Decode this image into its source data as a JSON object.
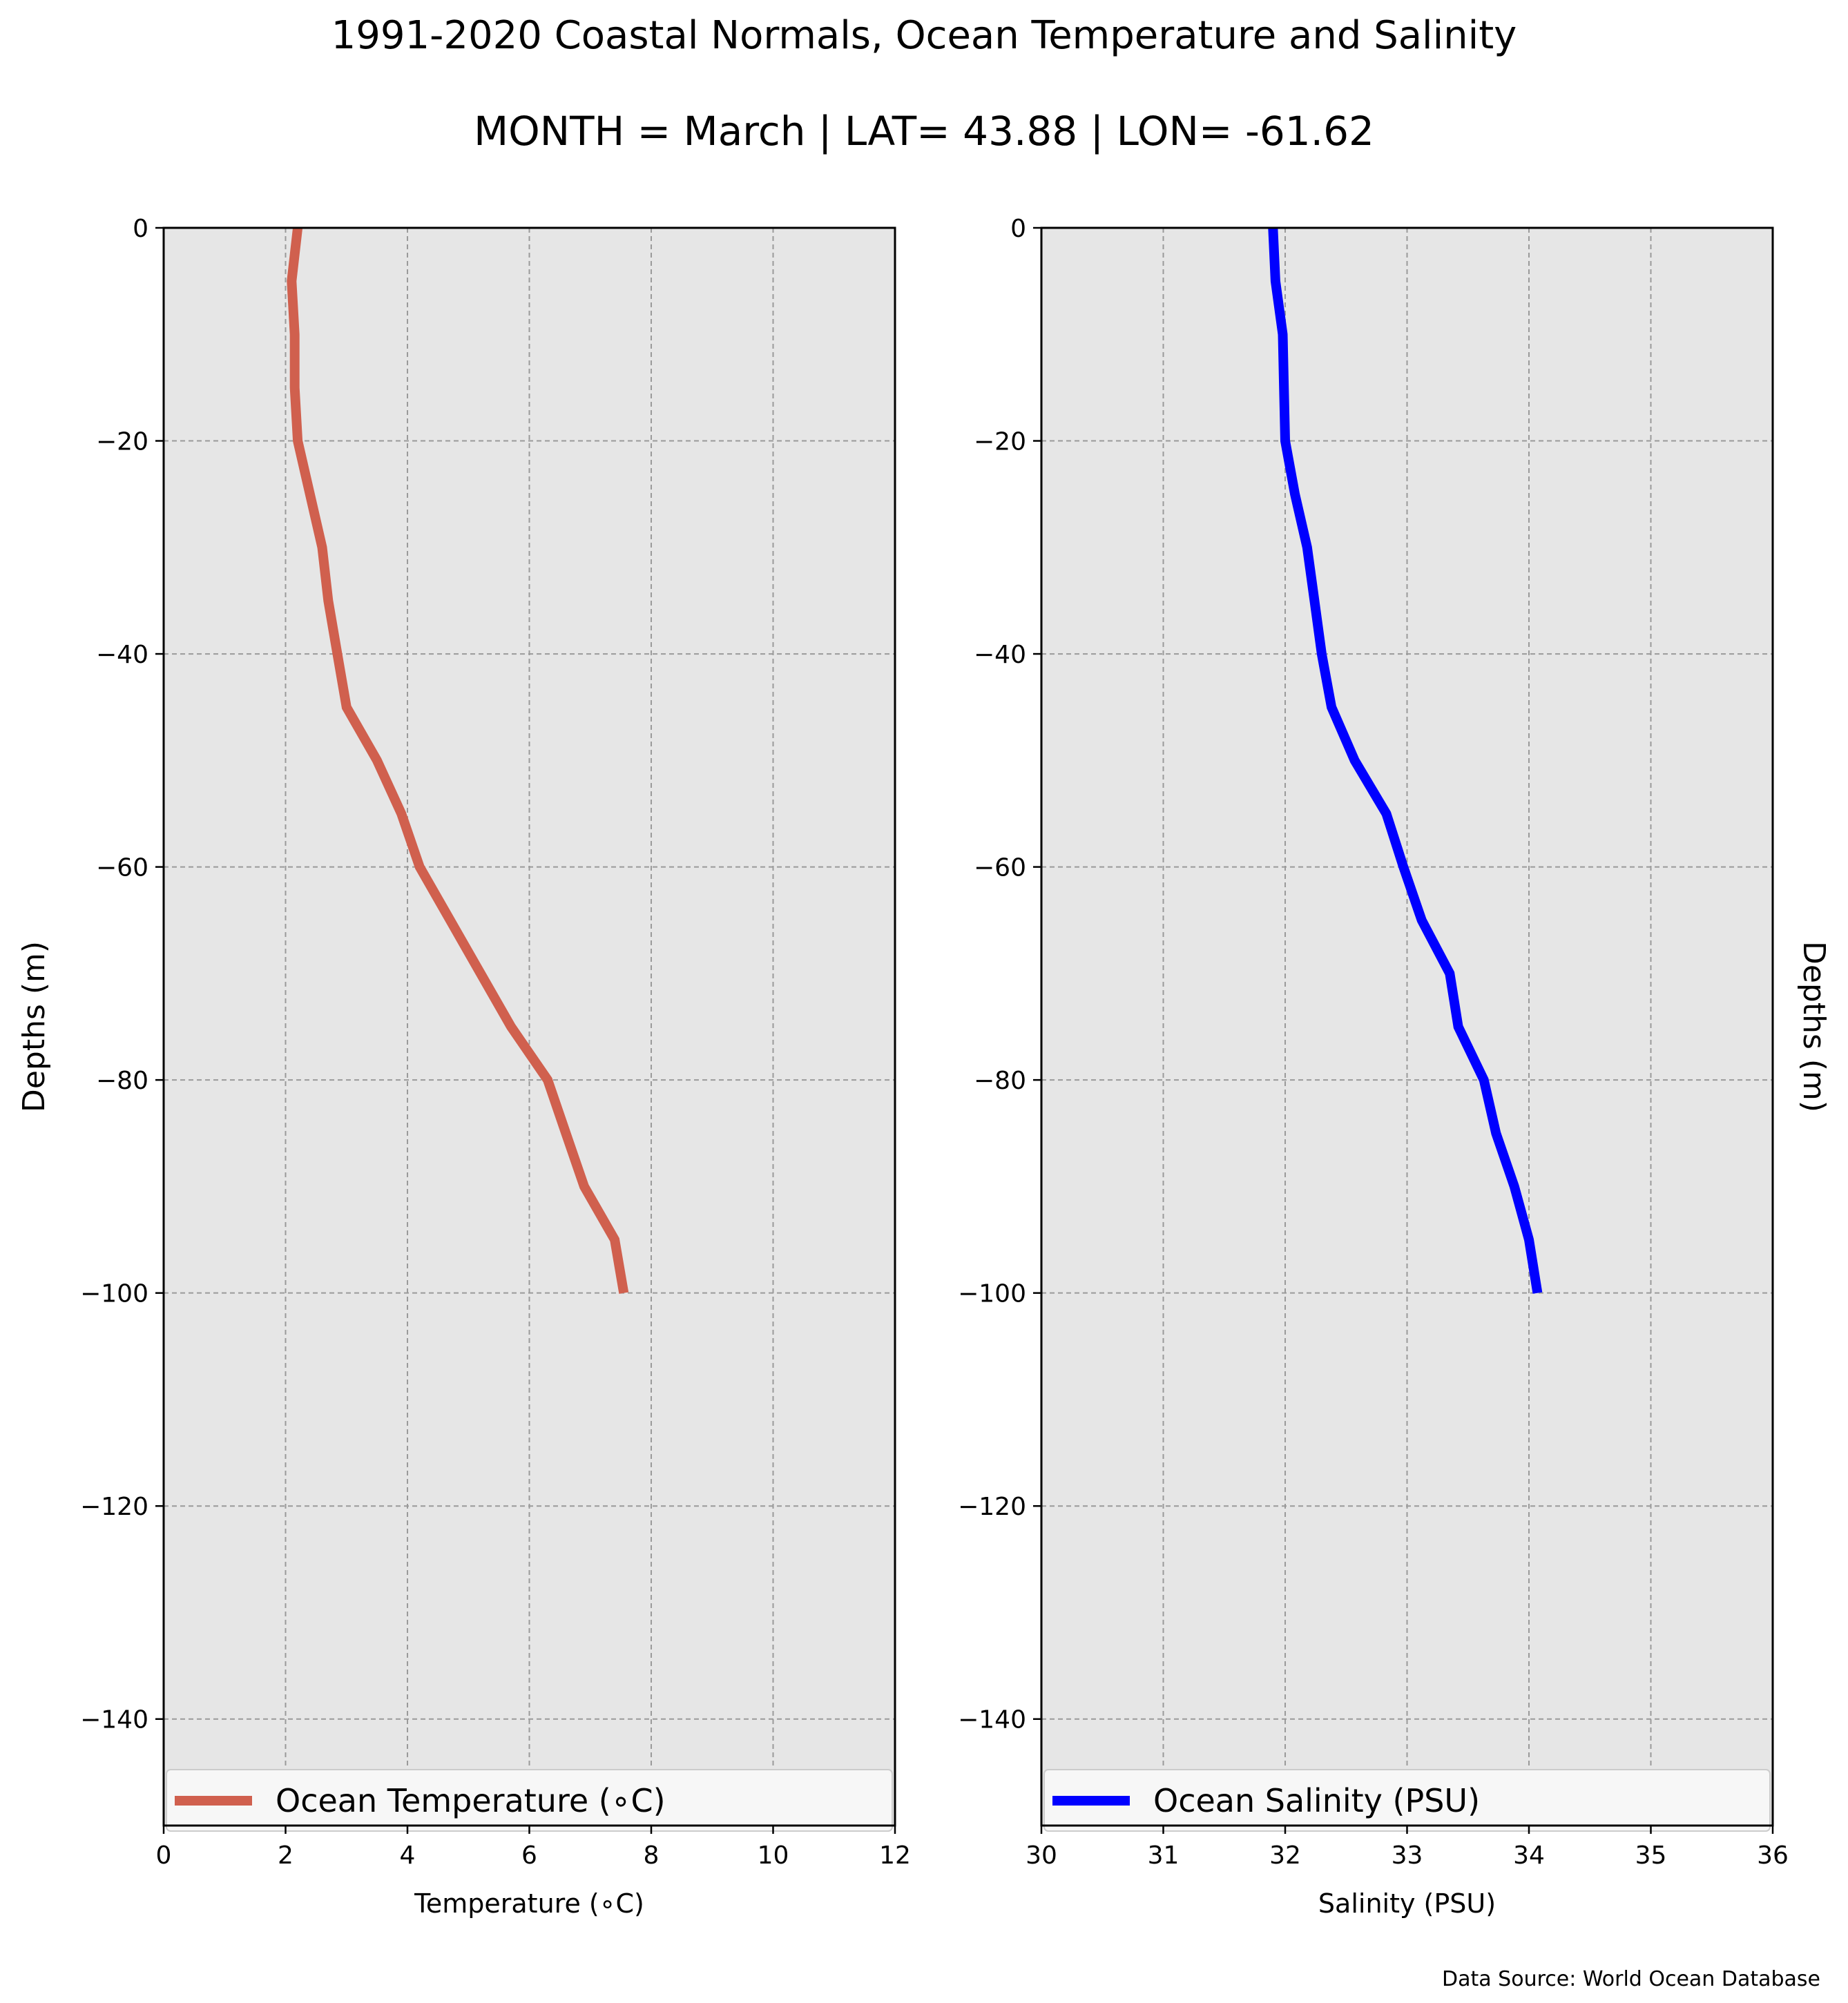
{
  "title": "1991-2020 Coastal Normals, Ocean Temperature and Salinity",
  "subtitle": "MONTH = March | LAT= 43.88 | LON= -61.62",
  "source": "Data Source: World Ocean Database",
  "chart_data": [
    {
      "type": "line",
      "xlabel": "Temperature (∘C)",
      "ylabel": "Depths (m)",
      "xlim": [
        0,
        12
      ],
      "ylim": [
        -150,
        0
      ],
      "xticks": [
        0,
        2,
        4,
        6,
        8,
        10,
        12
      ],
      "yticks": [
        0,
        -20,
        -40,
        -60,
        -80,
        -100,
        -120,
        -140
      ],
      "grid": true,
      "legend_position": "bottom",
      "series": [
        {
          "name": "Ocean Temperature (∘C)",
          "color": "#d0604e",
          "x": [
            2.2,
            2.1,
            2.15,
            2.15,
            2.2,
            2.4,
            2.6,
            2.7,
            2.85,
            3.0,
            3.5,
            3.9,
            4.2,
            4.7,
            5.2,
            5.7,
            6.3,
            6.6,
            6.9,
            7.4,
            7.55
          ],
          "y": [
            0,
            -5,
            -10,
            -15,
            -20,
            -25,
            -30,
            -35,
            -40,
            -45,
            -50,
            -55,
            -60,
            -65,
            -70,
            -75,
            -80,
            -85,
            -90,
            -95,
            -100
          ]
        }
      ]
    },
    {
      "type": "line",
      "xlabel": "Salinity (PSU)",
      "ylabel": "Depths (m)",
      "xlim": [
        30,
        36
      ],
      "ylim": [
        -150,
        0
      ],
      "xticks": [
        30,
        31,
        32,
        33,
        34,
        35,
        36
      ],
      "yticks": [
        0,
        -20,
        -40,
        -60,
        -80,
        -100,
        -120,
        -140
      ],
      "grid": true,
      "legend_position": "bottom",
      "series": [
        {
          "name": "Ocean Salinity (PSU)",
          "color": "#0000ff",
          "x": [
            31.9,
            31.92,
            31.98,
            31.99,
            32.0,
            32.08,
            32.18,
            32.24,
            32.3,
            32.38,
            32.57,
            32.83,
            32.97,
            33.12,
            33.35,
            33.42,
            33.63,
            33.73,
            33.88,
            34.0,
            34.07
          ],
          "y": [
            0,
            -5,
            -10,
            -15,
            -20,
            -25,
            -30,
            -35,
            -40,
            -45,
            -50,
            -55,
            -60,
            -65,
            -70,
            -75,
            -80,
            -85,
            -90,
            -95,
            -100
          ]
        }
      ]
    }
  ]
}
